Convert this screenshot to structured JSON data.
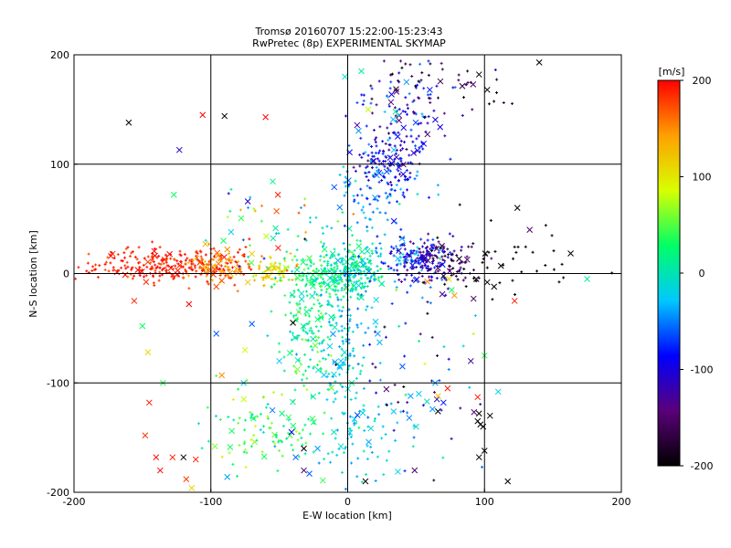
{
  "chart_data": {
    "type": "scatter",
    "title": "Tromsø 20160707 15:22:00-15:23:43",
    "subtitle": "RwPretec (8p) EXPERIMENTAL SKYMAP",
    "xlabel": "E-W location [km]",
    "ylabel": "N-S location [km]",
    "xlim": [
      -200,
      200
    ],
    "ylim": [
      -200,
      200
    ],
    "xticks": [
      -200,
      -100,
      0,
      100,
      200
    ],
    "yticks": [
      -200,
      -100,
      0,
      100,
      200
    ],
    "grid": true,
    "colorbar": {
      "unit": "[m/s]",
      "range": [
        -200,
        200
      ],
      "ticks": [
        -200,
        -100,
        0,
        100,
        200
      ],
      "colors": [
        "#000000",
        "#5a007a",
        "#0000ff",
        "#00c8ff",
        "#00ff66",
        "#d8ff00",
        "#ffa000",
        "#ff0000"
      ]
    },
    "marker_legend": {
      "dot": "small dot markers",
      "cross": "x markers"
    },
    "series": [
      {
        "name": "velocity vectors",
        "points": [
          {
            "x": -160,
            "y": 138,
            "v": -210,
            "m": "x"
          },
          {
            "x": -123,
            "y": 113,
            "v": -110,
            "m": "x"
          },
          {
            "x": -106,
            "y": 145,
            "v": 200,
            "m": "x"
          },
          {
            "x": -90,
            "y": 144,
            "v": -210,
            "m": "x"
          },
          {
            "x": -60,
            "y": 143,
            "v": 200,
            "m": "x"
          },
          {
            "x": -127,
            "y": 72,
            "v": 30,
            "m": "x"
          },
          {
            "x": -73,
            "y": 66,
            "v": -110,
            "m": "x"
          },
          {
            "x": -51,
            "y": 72,
            "v": 190,
            "m": "x"
          },
          {
            "x": -52,
            "y": 57,
            "v": 170,
            "m": "x"
          },
          {
            "x": -70,
            "y": 18,
            "v": 120,
            "m": "x"
          },
          {
            "x": -88,
            "y": 22,
            "v": 150,
            "m": "x"
          },
          {
            "x": -104,
            "y": 27,
            "v": 130,
            "m": "x"
          },
          {
            "x": -108,
            "y": 10,
            "v": 175,
            "m": "x"
          },
          {
            "x": -100,
            "y": 3,
            "v": 160,
            "m": "x"
          },
          {
            "x": -96,
            "y": -12,
            "v": 175,
            "m": "x"
          },
          {
            "x": -80,
            "y": 1,
            "v": 150,
            "m": "x"
          },
          {
            "x": -73,
            "y": -8,
            "v": 120,
            "m": "x"
          },
          {
            "x": -58,
            "y": -3,
            "v": 110,
            "m": "x"
          },
          {
            "x": -45,
            "y": 5,
            "v": 70,
            "m": "x"
          },
          {
            "x": -156,
            "y": -25,
            "v": 190,
            "m": "x"
          },
          {
            "x": -150,
            "y": -48,
            "v": 30,
            "m": "x"
          },
          {
            "x": -146,
            "y": -72,
            "v": 110,
            "m": "x"
          },
          {
            "x": -135,
            "y": -100,
            "v": 40,
            "m": "x"
          },
          {
            "x": -116,
            "y": -28,
            "v": 200,
            "m": "x"
          },
          {
            "x": -96,
            "y": -55,
            "v": -60,
            "m": "x"
          },
          {
            "x": -75,
            "y": -70,
            "v": 90,
            "m": "x"
          },
          {
            "x": -70,
            "y": -46,
            "v": -60,
            "m": "x"
          },
          {
            "x": -50,
            "y": -80,
            "v": -30,
            "m": "x"
          },
          {
            "x": -40,
            "y": -45,
            "v": -200,
            "m": "x"
          },
          {
            "x": -30,
            "y": -35,
            "v": 20,
            "m": "x"
          },
          {
            "x": -12,
            "y": -40,
            "v": 0,
            "m": "x"
          },
          {
            "x": -5,
            "y": -80,
            "v": -30,
            "m": "x"
          },
          {
            "x": 10,
            "y": -22,
            "v": 10,
            "m": "x"
          },
          {
            "x": 22,
            "y": -55,
            "v": -40,
            "m": "x"
          },
          {
            "x": -145,
            "y": -118,
            "v": 190,
            "m": "x"
          },
          {
            "x": -148,
            "y": -148,
            "v": 180,
            "m": "x"
          },
          {
            "x": -140,
            "y": -168,
            "v": 200,
            "m": "x"
          },
          {
            "x": -128,
            "y": -168,
            "v": 190,
            "m": "x"
          },
          {
            "x": -120,
            "y": -168,
            "v": -210,
            "m": "x"
          },
          {
            "x": -111,
            "y": -170,
            "v": 190,
            "m": "x"
          },
          {
            "x": -137,
            "y": -180,
            "v": 200,
            "m": "x"
          },
          {
            "x": -118,
            "y": -188,
            "v": 180,
            "m": "x"
          },
          {
            "x": -114,
            "y": -196,
            "v": 110,
            "m": "x"
          },
          {
            "x": -92,
            "y": -93,
            "v": 150,
            "m": "x"
          },
          {
            "x": -76,
            "y": -100,
            "v": -20,
            "m": "x"
          },
          {
            "x": -76,
            "y": -115,
            "v": 80,
            "m": "x"
          },
          {
            "x": -55,
            "y": -125,
            "v": -50,
            "m": "x"
          },
          {
            "x": -48,
            "y": -128,
            "v": 20,
            "m": "x"
          },
          {
            "x": -41,
            "y": -145,
            "v": -90,
            "m": "x"
          },
          {
            "x": -97,
            "y": -158,
            "v": 60,
            "m": "x"
          },
          {
            "x": -88,
            "y": -186,
            "v": -40,
            "m": "x"
          },
          {
            "x": -38,
            "y": -168,
            "v": -60,
            "m": "x"
          },
          {
            "x": -32,
            "y": -180,
            "v": -150,
            "m": "x"
          },
          {
            "x": -22,
            "y": -160,
            "v": -40,
            "m": "x"
          },
          {
            "x": -10,
            "y": -145,
            "v": 0,
            "m": "x"
          },
          {
            "x": -5,
            "y": -158,
            "v": -10,
            "m": "x"
          },
          {
            "x": -32,
            "y": -160,
            "v": -200,
            "m": "x"
          },
          {
            "x": -28,
            "y": -183,
            "v": -60,
            "m": "x"
          },
          {
            "x": 13,
            "y": -190,
            "v": -210,
            "m": "x"
          },
          {
            "x": 3,
            "y": -100,
            "v": 10,
            "m": "x"
          },
          {
            "x": 40,
            "y": -85,
            "v": -60,
            "m": "x"
          },
          {
            "x": 46,
            "y": -112,
            "v": -40,
            "m": "x"
          },
          {
            "x": 52,
            "y": -110,
            "v": -20,
            "m": "x"
          },
          {
            "x": 64,
            "y": -100,
            "v": -40,
            "m": "x"
          },
          {
            "x": 66,
            "y": -112,
            "v": 120,
            "m": "x"
          },
          {
            "x": 73,
            "y": -105,
            "v": 190,
            "m": "x"
          },
          {
            "x": 70,
            "y": -118,
            "v": -80,
            "m": "x"
          },
          {
            "x": 62,
            "y": -124,
            "v": -40,
            "m": "x"
          },
          {
            "x": 45,
            "y": -132,
            "v": -50,
            "m": "x"
          },
          {
            "x": 50,
            "y": -140,
            "v": -10,
            "m": "x"
          },
          {
            "x": 66,
            "y": -126,
            "v": -200,
            "m": "x"
          },
          {
            "x": 95,
            "y": -135,
            "v": -210,
            "m": "x"
          },
          {
            "x": 97,
            "y": -138,
            "v": -210,
            "m": "x"
          },
          {
            "x": 99,
            "y": -140,
            "v": -200,
            "m": "x"
          },
          {
            "x": 96,
            "y": -128,
            "v": -210,
            "m": "x"
          },
          {
            "x": 104,
            "y": -130,
            "v": -200,
            "m": "x"
          },
          {
            "x": 100,
            "y": -162,
            "v": -210,
            "m": "x"
          },
          {
            "x": 96,
            "y": -168,
            "v": -210,
            "m": "x"
          },
          {
            "x": 95,
            "y": -113,
            "v": 190,
            "m": "x"
          },
          {
            "x": 90,
            "y": -80,
            "v": -130,
            "m": "x"
          },
          {
            "x": 100,
            "y": -75,
            "v": 40,
            "m": "x"
          },
          {
            "x": 110,
            "y": -108,
            "v": -20,
            "m": "x"
          },
          {
            "x": 117,
            "y": -190,
            "v": -210,
            "m": "x"
          },
          {
            "x": 74,
            "y": -5,
            "v": 110,
            "m": "x"
          },
          {
            "x": 78,
            "y": -20,
            "v": 150,
            "m": "x"
          },
          {
            "x": 92,
            "y": -23,
            "v": -160,
            "m": "x"
          },
          {
            "x": 94,
            "y": -5,
            "v": -200,
            "m": "x"
          },
          {
            "x": 102,
            "y": -8,
            "v": -210,
            "m": "x"
          },
          {
            "x": 107,
            "y": -12,
            "v": -210,
            "m": "x"
          },
          {
            "x": 112,
            "y": 7,
            "v": -210,
            "m": "x"
          },
          {
            "x": 122,
            "y": -25,
            "v": 190,
            "m": "x"
          },
          {
            "x": 124,
            "y": 60,
            "v": -210,
            "m": "x"
          },
          {
            "x": 133,
            "y": 40,
            "v": -150,
            "m": "x"
          },
          {
            "x": 175,
            "y": -5,
            "v": 10,
            "m": "x"
          },
          {
            "x": 140,
            "y": 193,
            "v": -210,
            "m": "x"
          },
          {
            "x": 76,
            "y": -15,
            "v": 30,
            "m": "x"
          },
          {
            "x": 66,
            "y": 5,
            "v": -160,
            "m": "x"
          },
          {
            "x": -2,
            "y": 180,
            "v": -10,
            "m": "x"
          },
          {
            "x": 10,
            "y": 185,
            "v": 10,
            "m": "x"
          },
          {
            "x": 35,
            "y": 148,
            "v": 10,
            "m": "x"
          },
          {
            "x": 60,
            "y": 168,
            "v": -80,
            "m": "x"
          },
          {
            "x": 102,
            "y": 168,
            "v": -200,
            "m": "x"
          },
          {
            "x": 96,
            "y": 182,
            "v": -210,
            "m": "x"
          },
          {
            "x": 15,
            "y": 150,
            "v": 80,
            "m": "x"
          }
        ],
        "clusters": [
          {
            "cx": -125,
            "cy": 8,
            "sx": 32,
            "sy": 8,
            "n": 260,
            "v": 190,
            "dv": 12
          },
          {
            "cx": -95,
            "cy": 5,
            "sx": 10,
            "sy": 8,
            "n": 80,
            "v": 150,
            "dv": 20
          },
          {
            "cx": -55,
            "cy": 2,
            "sx": 8,
            "sy": 6,
            "n": 60,
            "v": 110,
            "dv": 25
          },
          {
            "cx": -20,
            "cy": 0,
            "sx": 12,
            "sy": 8,
            "n": 110,
            "v": 20,
            "dv": 20
          },
          {
            "cx": 5,
            "cy": 2,
            "sx": 10,
            "sy": 12,
            "n": 220,
            "v": 5,
            "dv": 25
          },
          {
            "cx": 40,
            "cy": 12,
            "sx": 14,
            "sy": 14,
            "n": 80,
            "v": -50,
            "dv": 30
          },
          {
            "cx": 55,
            "cy": 12,
            "sx": 12,
            "sy": 10,
            "n": 150,
            "v": -110,
            "dv": 25
          },
          {
            "cx": 75,
            "cy": 10,
            "sx": 12,
            "sy": 12,
            "n": 55,
            "v": -160,
            "dv": 30
          },
          {
            "cx": 115,
            "cy": 15,
            "sx": 28,
            "sy": 20,
            "n": 40,
            "v": -205,
            "dv": 6
          },
          {
            "cx": 20,
            "cy": 75,
            "sx": 14,
            "sy": 18,
            "n": 100,
            "v": -50,
            "dv": 25
          },
          {
            "cx": 30,
            "cy": 100,
            "sx": 14,
            "sy": 12,
            "n": 110,
            "v": -100,
            "dv": 25
          },
          {
            "cx": 38,
            "cy": 145,
            "sx": 18,
            "sy": 22,
            "n": 110,
            "v": -100,
            "dv": 35
          },
          {
            "cx": 70,
            "cy": 175,
            "sx": 22,
            "sy": 14,
            "n": 45,
            "v": -170,
            "dv": 30
          },
          {
            "cx": -28,
            "cy": -45,
            "sx": 12,
            "sy": 32,
            "n": 180,
            "v": 20,
            "dv": 25
          },
          {
            "cx": 0,
            "cy": -60,
            "sx": 10,
            "sy": 35,
            "n": 110,
            "v": -25,
            "dv": 20
          },
          {
            "cx": -55,
            "cy": -145,
            "sx": 22,
            "sy": 22,
            "n": 110,
            "v": 35,
            "dv": 30
          },
          {
            "cx": 10,
            "cy": -150,
            "sx": 14,
            "sy": 28,
            "n": 75,
            "v": -20,
            "dv": 20
          },
          {
            "cx": 55,
            "cy": -100,
            "sx": 25,
            "sy": 40,
            "n": 60,
            "v": -80,
            "dv": 80
          },
          {
            "cx": -60,
            "cy": 40,
            "sx": 25,
            "sy": 20,
            "n": 45,
            "v": 20,
            "dv": 80
          }
        ]
      }
    ]
  }
}
